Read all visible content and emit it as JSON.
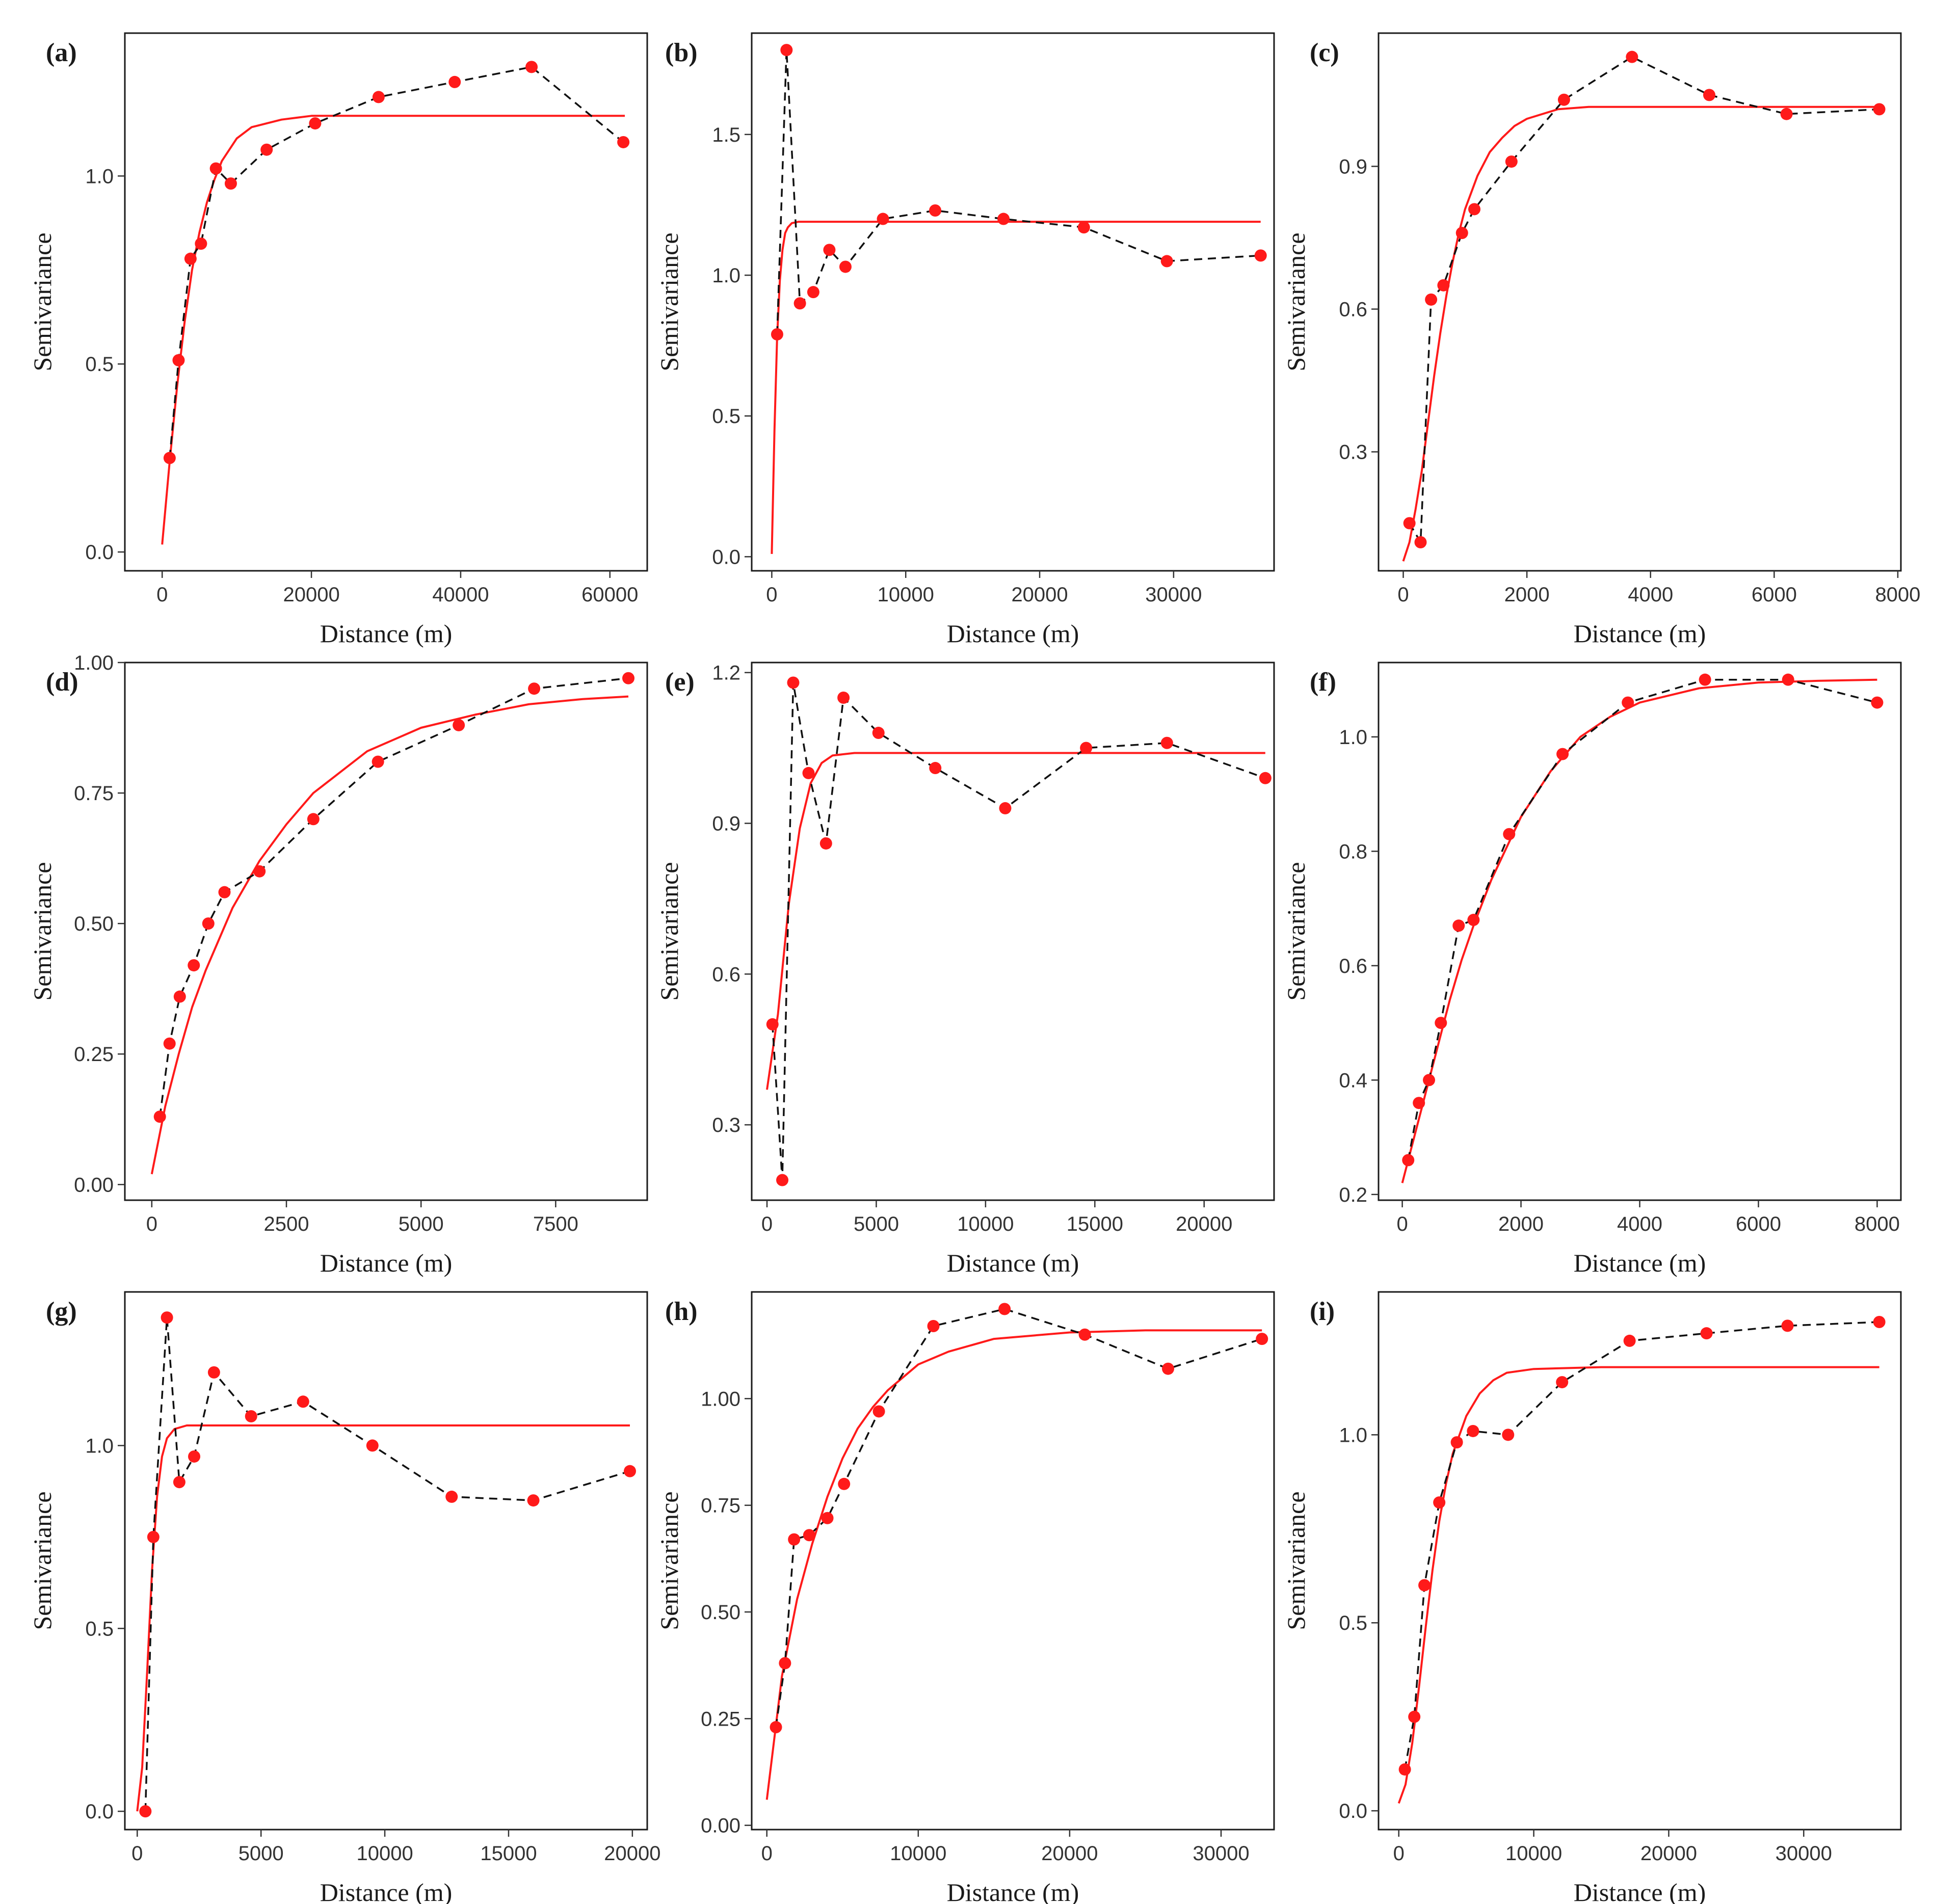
{
  "figure": {
    "description_labels": {
      "xlabel": "Distance (m)",
      "ylabel": "Semivariance"
    },
    "colors": {
      "model": "#ff1a1a",
      "points": "#ff1a1a",
      "empirical_line": "#111111",
      "frame": "#1a1a1a"
    }
  },
  "chart_data": [
    {
      "type": "scatter",
      "panel": "(a)",
      "xlabel": "Distance (m)",
      "ylabel": "Semivariance",
      "xlim": [
        -5000,
        65000
      ],
      "ylim": [
        -0.05,
        1.38
      ],
      "xticks": [
        0,
        20000,
        40000,
        60000
      ],
      "xtick_labels": [
        "0",
        "20000",
        "40000",
        "60000"
      ],
      "yticks": [
        0,
        0.5,
        1.0
      ],
      "ytick_labels": [
        "0.0",
        "0.5",
        "1.0"
      ],
      "empirical": {
        "x": [
          1000,
          2200,
          3800,
          5200,
          7200,
          9200,
          14000,
          20500,
          29000,
          39200,
          49500,
          61800
        ],
        "y": [
          0.25,
          0.51,
          0.78,
          0.82,
          1.02,
          0.98,
          1.07,
          1.14,
          1.21,
          1.25,
          1.29,
          1.09
        ]
      },
      "model": {
        "x": [
          0,
          1000,
          2000,
          3000,
          4000,
          5000,
          6000,
          7000,
          8000,
          9000,
          10000,
          12000,
          14000,
          16000,
          18000,
          20000,
          25000,
          30000,
          40000,
          50000,
          62000
        ],
        "y": [
          0.02,
          0.24,
          0.44,
          0.61,
          0.75,
          0.85,
          0.93,
          0.99,
          1.04,
          1.07,
          1.1,
          1.13,
          1.14,
          1.15,
          1.155,
          1.16,
          1.16,
          1.16,
          1.16,
          1.16,
          1.16
        ]
      }
    },
    {
      "type": "scatter",
      "panel": "(b)",
      "xlabel": "Distance (m)",
      "ylabel": "Semivariance",
      "xlim": [
        -1500,
        37500
      ],
      "ylim": [
        -0.05,
        1.86
      ],
      "xticks": [
        0,
        10000,
        20000,
        30000
      ],
      "xtick_labels": [
        "0",
        "10000",
        "20000",
        "30000"
      ],
      "yticks": [
        0,
        0.5,
        1.0,
        1.5
      ],
      "ytick_labels": [
        "0.0",
        "0.5",
        "1.0",
        "1.5"
      ],
      "empirical": {
        "x": [
          400,
          1100,
          2100,
          3100,
          4300,
          5500,
          8300,
          12200,
          17300,
          23300,
          29500,
          36500
        ],
        "y": [
          0.79,
          1.8,
          0.9,
          0.94,
          1.09,
          1.03,
          1.2,
          1.23,
          1.2,
          1.17,
          1.05,
          1.07
        ]
      },
      "model": {
        "x": [
          0,
          200,
          400,
          600,
          800,
          1000,
          1200,
          1500,
          2000,
          3000,
          5000,
          10000,
          20000,
          36500
        ],
        "y": [
          0.01,
          0.45,
          0.78,
          0.98,
          1.09,
          1.15,
          1.17,
          1.185,
          1.19,
          1.19,
          1.19,
          1.19,
          1.19,
          1.19
        ]
      }
    },
    {
      "type": "scatter",
      "panel": "(c)",
      "xlabel": "Distance (m)",
      "ylabel": "Semivariance",
      "xlim": [
        -400,
        8050
      ],
      "ylim": [
        0.05,
        1.18
      ],
      "xticks": [
        0,
        2000,
        4000,
        6000,
        8000
      ],
      "xtick_labels": [
        "0",
        "2000",
        "4000",
        "6000",
        "8000"
      ],
      "yticks": [
        0.3,
        0.6,
        0.9
      ],
      "ytick_labels": [
        "0.3",
        "0.6",
        "0.9"
      ],
      "empirical": {
        "x": [
          100,
          280,
          450,
          650,
          950,
          1150,
          1750,
          2600,
          3700,
          4950,
          6200,
          7700
        ],
        "y": [
          0.15,
          0.11,
          0.62,
          0.65,
          0.76,
          0.81,
          0.91,
          1.04,
          1.13,
          1.05,
          1.01,
          1.02
        ]
      },
      "model": {
        "x": [
          0,
          100,
          200,
          300,
          400,
          500,
          600,
          700,
          800,
          900,
          1000,
          1200,
          1400,
          1600,
          1800,
          2000,
          2500,
          3000,
          4000,
          5000,
          6000,
          7700
        ],
        "y": [
          0.07,
          0.11,
          0.18,
          0.26,
          0.36,
          0.46,
          0.55,
          0.63,
          0.7,
          0.76,
          0.81,
          0.88,
          0.93,
          0.96,
          0.985,
          1.0,
          1.02,
          1.025,
          1.025,
          1.025,
          1.025,
          1.025
        ]
      }
    },
    {
      "type": "scatter",
      "panel": "(d)",
      "xlabel": "Distance (m)",
      "ylabel": "Semivariance",
      "xlim": [
        -500,
        9200
      ],
      "ylim": [
        -0.03,
        1.0
      ],
      "xticks": [
        0,
        2500,
        5000,
        7500
      ],
      "xtick_labels": [
        "0",
        "2500",
        "5000",
        "7500"
      ],
      "yticks": [
        0.0,
        0.25,
        0.5,
        0.75,
        1.0
      ],
      "ytick_labels": [
        "0.00",
        "0.25",
        "0.50",
        "0.75",
        "1.00"
      ],
      "empirical": {
        "x": [
          150,
          330,
          520,
          780,
          1050,
          1350,
          2000,
          3000,
          4200,
          5700,
          7100,
          8850
        ],
        "y": [
          0.13,
          0.27,
          0.36,
          0.42,
          0.5,
          0.56,
          0.6,
          0.7,
          0.81,
          0.88,
          0.95,
          0.97
        ]
      },
      "model": {
        "x": [
          0,
          250,
          500,
          750,
          1000,
          1500,
          2000,
          2500,
          3000,
          3500,
          4000,
          5000,
          6000,
          7000,
          8000,
          8850
        ],
        "y": [
          0.02,
          0.15,
          0.25,
          0.34,
          0.41,
          0.53,
          0.62,
          0.69,
          0.75,
          0.79,
          0.83,
          0.875,
          0.9,
          0.92,
          0.93,
          0.935
        ]
      }
    },
    {
      "type": "scatter",
      "panel": "(e)",
      "xlabel": "Distance (m)",
      "ylabel": "Semivariance",
      "xlim": [
        -700,
        23200
      ],
      "ylim": [
        0.15,
        1.22
      ],
      "xticks": [
        0,
        5000,
        10000,
        15000,
        20000
      ],
      "xtick_labels": [
        "0",
        "5000",
        "10000",
        "15000",
        "20000"
      ],
      "yticks": [
        0.3,
        0.6,
        0.9,
        1.2
      ],
      "ytick_labels": [
        "0.3",
        "0.6",
        "0.9",
        "1.2"
      ],
      "empirical": {
        "x": [
          250,
          700,
          1200,
          1900,
          2700,
          3500,
          5100,
          7700,
          10900,
          14600,
          18300,
          22800
        ],
        "y": [
          0.5,
          0.19,
          1.18,
          1.0,
          0.86,
          1.15,
          1.08,
          1.01,
          0.93,
          1.05,
          1.06,
          0.99
        ]
      },
      "model": {
        "x": [
          0,
          500,
          1000,
          1500,
          2000,
          2500,
          3000,
          4000,
          6000,
          10000,
          15000,
          20000,
          22800
        ],
        "y": [
          0.37,
          0.52,
          0.74,
          0.89,
          0.98,
          1.02,
          1.035,
          1.04,
          1.04,
          1.04,
          1.04,
          1.04,
          1.04
        ]
      }
    },
    {
      "type": "scatter",
      "panel": "(f)",
      "xlabel": "Distance (m)",
      "ylabel": "Semivariance",
      "xlim": [
        -400,
        8400
      ],
      "ylim": [
        0.19,
        1.13
      ],
      "xticks": [
        0,
        2000,
        4000,
        6000,
        8000
      ],
      "xtick_labels": [
        "0",
        "2000",
        "4000",
        "6000",
        "8000"
      ],
      "yticks": [
        0.2,
        0.4,
        0.6,
        0.8,
        1.0
      ],
      "ytick_labels": [
        "0.2",
        "0.4",
        "0.6",
        "0.8",
        "1.0"
      ],
      "empirical": {
        "x": [
          100,
          280,
          450,
          650,
          950,
          1200,
          1800,
          2700,
          3800,
          5100,
          6500,
          8000
        ],
        "y": [
          0.26,
          0.36,
          0.4,
          0.5,
          0.67,
          0.68,
          0.83,
          0.97,
          1.06,
          1.1,
          1.1,
          1.06
        ]
      },
      "model": {
        "x": [
          0,
          200,
          400,
          600,
          800,
          1000,
          1200,
          1500,
          2000,
          2500,
          3000,
          3500,
          4000,
          5000,
          6000,
          7000,
          8000
        ],
        "y": [
          0.22,
          0.3,
          0.38,
          0.46,
          0.54,
          0.61,
          0.67,
          0.75,
          0.86,
          0.94,
          1.0,
          1.035,
          1.06,
          1.085,
          1.095,
          1.098,
          1.1
        ]
      }
    },
    {
      "type": "scatter",
      "panel": "(g)",
      "xlabel": "Distance (m)",
      "ylabel": "Semivariance",
      "xlim": [
        -500,
        20600
      ],
      "ylim": [
        -0.05,
        1.42
      ],
      "xticks": [
        0,
        5000,
        10000,
        15000,
        20000
      ],
      "xtick_labels": [
        "0",
        "5000",
        "10000",
        "15000",
        "20000"
      ],
      "yticks": [
        0,
        0.5,
        1.0
      ],
      "ytick_labels": [
        "0.0",
        "0.5",
        "1.0"
      ],
      "empirical": {
        "x": [
          330,
          650,
          1200,
          1700,
          2300,
          3100,
          4600,
          6700,
          9500,
          12700,
          16000,
          19900
        ],
        "y": [
          0.0,
          0.75,
          1.35,
          0.9,
          0.97,
          1.2,
          1.08,
          1.12,
          1.0,
          0.86,
          0.85,
          0.93
        ]
      },
      "model": {
        "x": [
          0,
          200,
          400,
          600,
          800,
          1000,
          1200,
          1500,
          2000,
          3000,
          5000,
          10000,
          15000,
          19900
        ],
        "y": [
          0.0,
          0.12,
          0.38,
          0.66,
          0.86,
          0.97,
          1.02,
          1.045,
          1.055,
          1.055,
          1.055,
          1.055,
          1.055,
          1.055
        ]
      }
    },
    {
      "type": "scatter",
      "panel": "(h)",
      "xlabel": "Distance (m)",
      "ylabel": "Semivariance",
      "xlim": [
        -1000,
        33500
      ],
      "ylim": [
        -0.01,
        1.25
      ],
      "xticks": [
        0,
        10000,
        20000,
        30000
      ],
      "xtick_labels": [
        "0",
        "10000",
        "20000",
        "30000"
      ],
      "yticks": [
        0.0,
        0.25,
        0.5,
        0.75,
        1.0
      ],
      "ytick_labels": [
        "0.00",
        "0.25",
        "0.50",
        "0.75",
        "1.00"
      ],
      "empirical": {
        "x": [
          600,
          1200,
          1800,
          2800,
          4000,
          5100,
          7400,
          11000,
          15700,
          21000,
          26500,
          32700
        ],
        "y": [
          0.23,
          0.38,
          0.67,
          0.68,
          0.72,
          0.8,
          0.97,
          1.17,
          1.21,
          1.15,
          1.07,
          1.14
        ]
      },
      "model": {
        "x": [
          0,
          1000,
          2000,
          3000,
          4000,
          5000,
          6000,
          7000,
          8000,
          10000,
          12000,
          15000,
          20000,
          25000,
          32700
        ],
        "y": [
          0.06,
          0.35,
          0.53,
          0.66,
          0.77,
          0.86,
          0.93,
          0.98,
          1.02,
          1.08,
          1.11,
          1.14,
          1.155,
          1.16,
          1.16
        ]
      }
    },
    {
      "type": "scatter",
      "panel": "(i)",
      "xlabel": "Distance (m)",
      "ylabel": "Semivariance",
      "xlim": [
        -1500,
        37200
      ],
      "ylim": [
        -0.05,
        1.38
      ],
      "xticks": [
        0,
        10000,
        20000,
        30000
      ],
      "xtick_labels": [
        "0",
        "10000",
        "20000",
        "30000"
      ],
      "yticks": [
        0,
        0.5,
        1.0
      ],
      "ytick_labels": [
        "0.0",
        "0.5",
        "1.0"
      ],
      "empirical": {
        "x": [
          450,
          1150,
          1900,
          3000,
          4300,
          5500,
          8100,
          12100,
          17100,
          22800,
          28800,
          35600
        ],
        "y": [
          0.11,
          0.25,
          0.6,
          0.82,
          0.98,
          1.01,
          1.0,
          1.14,
          1.25,
          1.27,
          1.29,
          1.3
        ]
      },
      "model": {
        "x": [
          0,
          500,
          1000,
          1500,
          2000,
          2500,
          3000,
          3500,
          4000,
          5000,
          6000,
          7000,
          8000,
          10000,
          15000,
          20000,
          35600
        ],
        "y": [
          0.02,
          0.07,
          0.18,
          0.33,
          0.49,
          0.64,
          0.77,
          0.87,
          0.95,
          1.05,
          1.11,
          1.145,
          1.165,
          1.175,
          1.18,
          1.18,
          1.18
        ]
      }
    }
  ]
}
